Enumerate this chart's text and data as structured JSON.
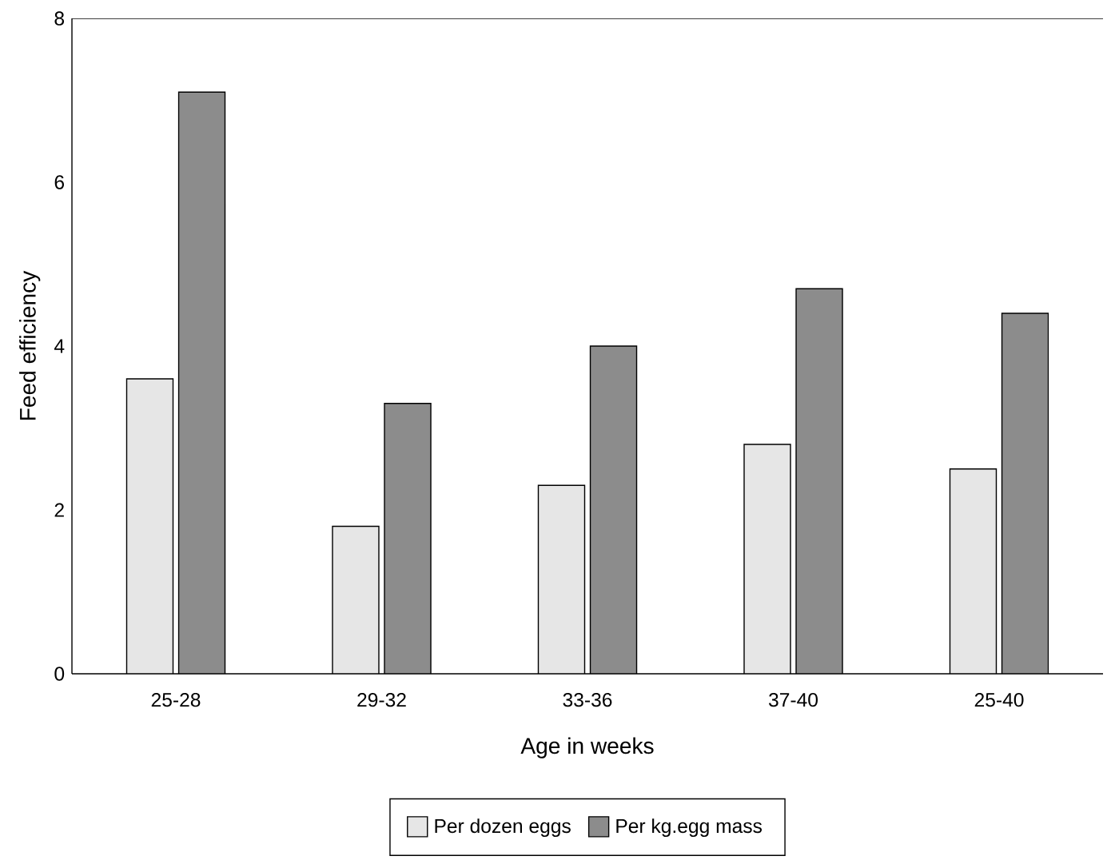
{
  "chart_data": {
    "type": "bar",
    "xlabel": "Age in weeks",
    "ylabel": "Feed efficiency",
    "categories": [
      "25-28",
      "29-32",
      "33-36",
      "37-40",
      "25-40"
    ],
    "series": [
      {
        "name": "Per dozen eggs",
        "color": "#e6e6e6",
        "values": [
          3.6,
          1.8,
          2.3,
          2.8,
          2.5
        ]
      },
      {
        "name": "Per kg.egg mass",
        "color": "#8c8c8c",
        "values": [
          7.1,
          3.3,
          4.0,
          4.7,
          4.4
        ]
      }
    ],
    "ylim": [
      0,
      8
    ],
    "yticks": [
      0,
      2,
      4,
      6,
      8
    ],
    "grid": false,
    "legend": "bottom"
  }
}
